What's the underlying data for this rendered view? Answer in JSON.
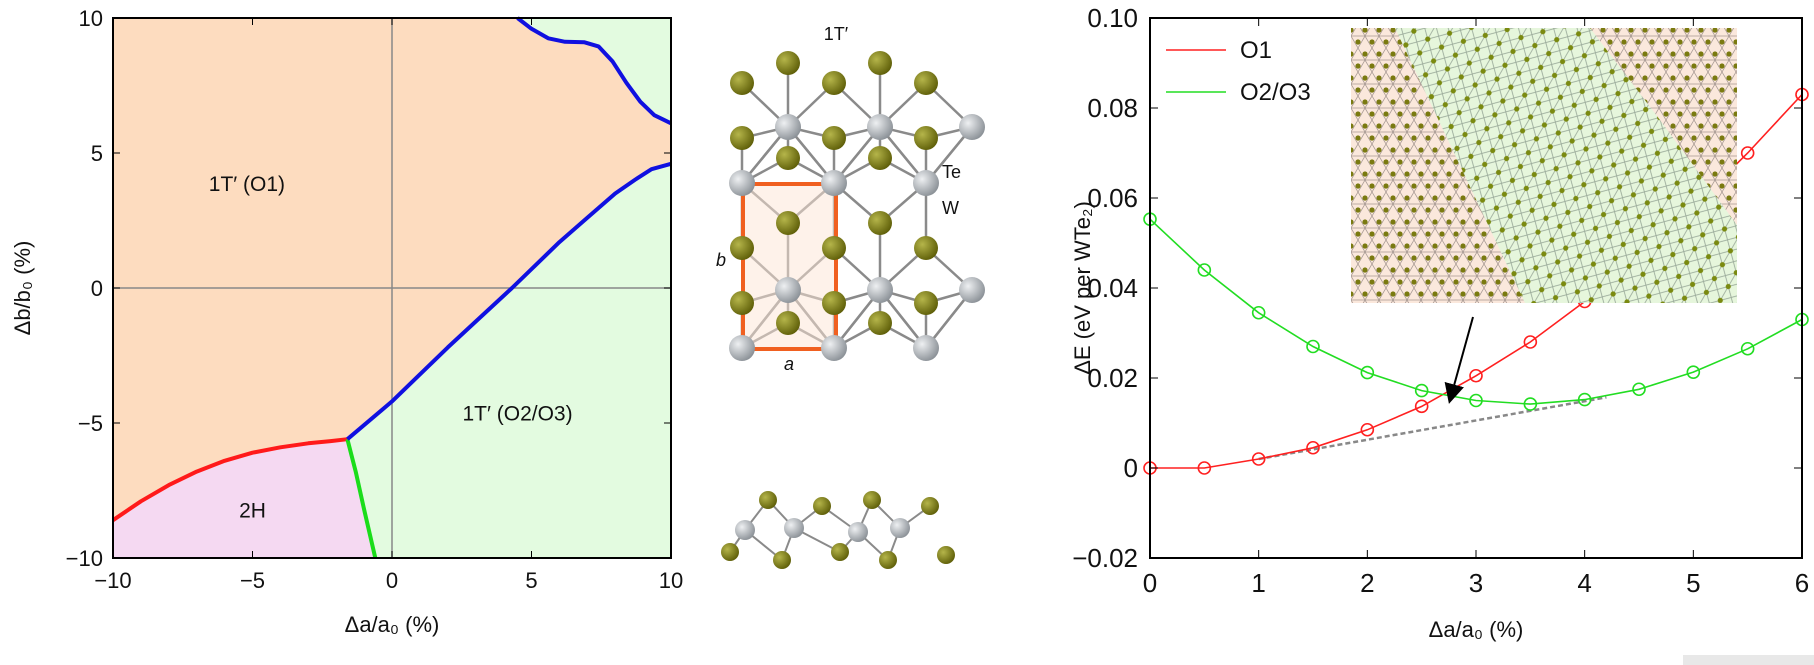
{
  "chart_data": [
    {
      "type": "phase-diagram",
      "xlabel": "Δa/a₀ (%)",
      "ylabel": "Δb/b₀ (%)",
      "xlim": [
        -10,
        10
      ],
      "ylim": [
        -10,
        10
      ],
      "xticks": [
        "−10",
        "−5",
        "0",
        "5",
        "10"
      ],
      "yticks": [
        "−10",
        "−5",
        "0",
        "5",
        "10"
      ],
      "xtick_values": [
        -10,
        -5,
        0,
        5,
        10
      ],
      "ytick_values": [
        -10,
        -5,
        0,
        5,
        10
      ],
      "regions": [
        {
          "label": "1T′ (O1)",
          "color": "#fddcbf",
          "at": [
            -5.2,
            3.6
          ]
        },
        {
          "label": "1T′ (O2/O3)",
          "color": "#e3fbe0",
          "at": [
            4.5,
            -4.9
          ]
        },
        {
          "label": "2H",
          "color": "#f5d9f2",
          "at": [
            -5,
            -8.5
          ]
        }
      ],
      "boundaries": [
        {
          "name": "O1-2H",
          "color": "#ff1a1a",
          "points": [
            [
              -10,
              -8.6
            ],
            [
              -9,
              -7.9
            ],
            [
              -8,
              -7.3
            ],
            [
              -7,
              -6.8
            ],
            [
              -6,
              -6.4
            ],
            [
              -5,
              -6.1
            ],
            [
              -4,
              -5.9
            ],
            [
              -3,
              -5.75
            ],
            [
              -2.2,
              -5.67
            ],
            [
              -1.6,
              -5.6
            ]
          ]
        },
        {
          "name": "2H-O2/O3",
          "color": "#1add1a",
          "points": [
            [
              -1.6,
              -5.6
            ],
            [
              -1.3,
              -6.8
            ],
            [
              -1.0,
              -8.2
            ],
            [
              -0.6,
              -10
            ]
          ]
        },
        {
          "name": "O1-O2/O3 lower",
          "color": "#1010e0",
          "points": [
            [
              -1.6,
              -5.6
            ],
            [
              0,
              -4.2
            ],
            [
              2,
              -2.2
            ],
            [
              4.3,
              0
            ],
            [
              6,
              1.7
            ],
            [
              7,
              2.6
            ],
            [
              8,
              3.5
            ],
            [
              8.7,
              4.0
            ],
            [
              9.3,
              4.4
            ],
            [
              10,
              4.6
            ]
          ]
        },
        {
          "name": "O1-O2/O3 upper",
          "color": "#1010e0",
          "points": [
            [
              4.5,
              10
            ],
            [
              5.0,
              9.6
            ],
            [
              5.6,
              9.25
            ],
            [
              6.2,
              9.12
            ],
            [
              6.9,
              9.1
            ],
            [
              7.4,
              8.95
            ],
            [
              7.9,
              8.4
            ],
            [
              8.4,
              7.6
            ],
            [
              8.9,
              6.9
            ],
            [
              9.4,
              6.4
            ],
            [
              10,
              6.1
            ]
          ]
        }
      ]
    },
    {
      "type": "line",
      "xlabel": "Δa/a₀ (%)",
      "ylabel": "ΔE (eV per WTe₂)",
      "xlim": [
        0,
        6
      ],
      "ylim": [
        -0.02,
        0.1
      ],
      "xticks": [
        "0",
        "1",
        "2",
        "3",
        "4",
        "5",
        "6"
      ],
      "yticks": [
        "−0.02",
        "0",
        "0.02",
        "0.04",
        "0.06",
        "0.08",
        "0.10"
      ],
      "xtick_values": [
        0,
        1,
        2,
        3,
        4,
        5,
        6
      ],
      "ytick_values": [
        -0.02,
        0,
        0.02,
        0.04,
        0.06,
        0.08,
        0.1
      ],
      "x": [
        0,
        0.5,
        1,
        1.5,
        2,
        2.5,
        3,
        3.5,
        4,
        4.5,
        5,
        5.5,
        6
      ],
      "series": [
        {
          "name": "O1",
          "color": "#ff2020",
          "values": [
            0,
            0,
            0.002,
            0.0045,
            0.0085,
            0.0137,
            0.0205,
            0.028,
            0.037,
            0.047,
            0.058,
            0.07,
            0.083
          ]
        },
        {
          "name": "O2/O3",
          "color": "#22dd22",
          "values": [
            0.0553,
            0.044,
            0.0345,
            0.027,
            0.0212,
            0.0172,
            0.015,
            0.0142,
            0.0152,
            0.0175,
            0.0213,
            0.0265,
            0.033
          ]
        }
      ],
      "common_tangent": {
        "color": "#888888",
        "points": [
          [
            1,
            0.002
          ],
          [
            4.2,
            0.0157
          ]
        ]
      },
      "legend_position": "top-left"
    }
  ],
  "structure": {
    "title": "1T′",
    "atom_labels": {
      "te": "Te",
      "w": "W"
    },
    "cell_labels": {
      "a": "a",
      "b": "b"
    },
    "colors": {
      "te": "#7a7a16",
      "w": "#b8bcc0",
      "cell": "#f06020"
    }
  }
}
